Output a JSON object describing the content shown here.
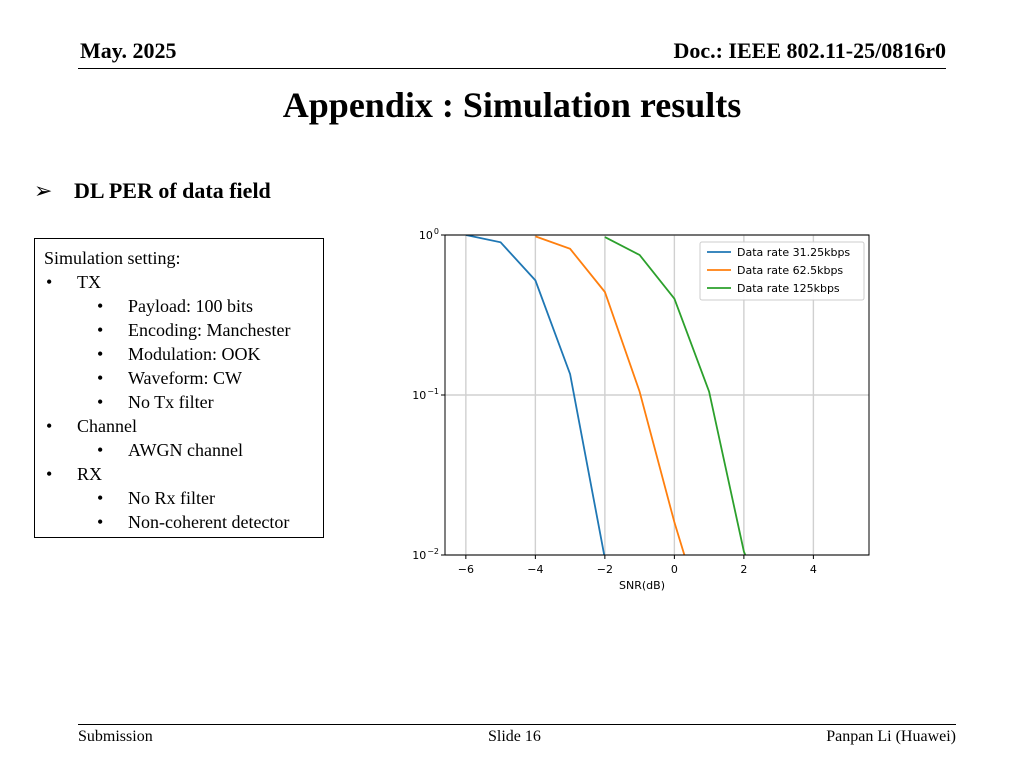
{
  "header": {
    "date": "May. 2025",
    "doc": "Doc.: IEEE 802.11-25/0816r0"
  },
  "title": "Appendix : Simulation results",
  "bullet": {
    "symbol": "➢",
    "text": "DL PER of data field"
  },
  "settings": {
    "heading": "Simulation setting:",
    "items": [
      {
        "level": 1,
        "text": "TX"
      },
      {
        "level": 2,
        "text": "Payload: 100 bits"
      },
      {
        "level": 2,
        "text": "Encoding: Manchester"
      },
      {
        "level": 2,
        "text": "Modulation: OOK"
      },
      {
        "level": 2,
        "text": "Waveform: CW"
      },
      {
        "level": 2,
        "text": "No Tx filter"
      },
      {
        "level": 1,
        "text": "Channel"
      },
      {
        "level": 2,
        "text": "AWGN channel"
      },
      {
        "level": 1,
        "text": "RX"
      },
      {
        "level": 2,
        "text": "No Rx filter"
      },
      {
        "level": 2,
        "text": "Non-coherent detector"
      }
    ]
  },
  "chart_data": {
    "type": "line",
    "title": "",
    "xlabel": "SNR(dB)",
    "ylabel": "",
    "xlim": [
      -6.6,
      5.6
    ],
    "ylim": [
      0.01,
      1
    ],
    "yscale": "log",
    "xticks": [
      -6,
      -4,
      -2,
      0,
      2,
      4
    ],
    "xtick_labels": [
      "−6",
      "−4",
      "−2",
      "0",
      "2",
      "4"
    ],
    "yticks": [
      {
        "value": 1,
        "base": "10",
        "exp": "0"
      },
      {
        "value": 0.1,
        "base": "10",
        "exp": "−1"
      },
      {
        "value": 0.01,
        "base": "10",
        "exp": "−2"
      }
    ],
    "grid": true,
    "legend_position": "top-right",
    "series": [
      {
        "name": "Data rate 31.25kbps",
        "color": "#1f77b4",
        "x": [
          -6,
          -5,
          -4,
          -3,
          -2
        ],
        "y": [
          1.0,
          0.9,
          0.52,
          0.135,
          0.0095
        ]
      },
      {
        "name": "Data rate 62.5kbps",
        "color": "#ff7f0e",
        "x": [
          -4,
          -3,
          -2,
          -1,
          0,
          0.3
        ],
        "y": [
          0.98,
          0.82,
          0.44,
          0.105,
          0.016,
          0.0098
        ]
      },
      {
        "name": "Data rate 125kbps",
        "color": "#2ca02c",
        "x": [
          -2,
          -1,
          0,
          1,
          2,
          2.05
        ],
        "y": [
          0.97,
          0.75,
          0.4,
          0.105,
          0.0105,
          0.0099
        ]
      }
    ]
  },
  "footer": {
    "left": "Submission",
    "center": "Slide 16",
    "right": "Panpan Li (Huawei)"
  }
}
